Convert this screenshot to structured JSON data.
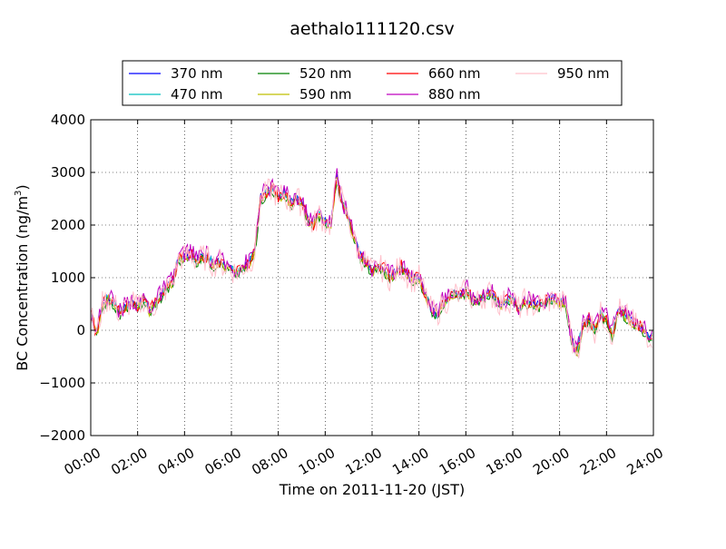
{
  "chart_data": {
    "type": "line",
    "title": "aethalo111120.csv",
    "xlabel": "Time on 2011-11-20 (JST)",
    "ylabel": "BC Concentration (ng/m",
    "ylabel_sup": "3",
    "ylabel_end": ")",
    "xlim": [
      "00:00",
      "24:00"
    ],
    "ylim": [
      -2000,
      4000
    ],
    "grid": true,
    "legend_position": "top",
    "x_ticks": [
      "00:00",
      "02:00",
      "04:00",
      "06:00",
      "08:00",
      "10:00",
      "12:00",
      "14:00",
      "16:00",
      "18:00",
      "20:00",
      "22:00",
      "24:00"
    ],
    "y_ticks": [
      "4000",
      "3000",
      "2000",
      "1000",
      "0",
      "−1000",
      "−2000"
    ],
    "x": [
      "00:00",
      "00:15",
      "00:30",
      "00:45",
      "01:00",
      "01:15",
      "01:30",
      "01:45",
      "02:00",
      "02:15",
      "02:30",
      "02:45",
      "03:00",
      "03:15",
      "03:30",
      "03:45",
      "04:00",
      "04:15",
      "04:30",
      "04:45",
      "05:00",
      "05:15",
      "05:30",
      "05:45",
      "06:00",
      "06:15",
      "06:30",
      "06:45",
      "07:00",
      "07:15",
      "07:30",
      "07:45",
      "08:00",
      "08:15",
      "08:30",
      "08:45",
      "09:00",
      "09:15",
      "09:30",
      "09:45",
      "10:00",
      "10:15",
      "10:30",
      "10:45",
      "11:00",
      "11:15",
      "11:30",
      "11:45",
      "12:00",
      "12:15",
      "12:30",
      "12:45",
      "13:00",
      "13:15",
      "13:30",
      "13:45",
      "14:00",
      "14:15",
      "14:30",
      "14:45",
      "15:00",
      "15:15",
      "15:30",
      "15:45",
      "16:00",
      "16:15",
      "16:30",
      "16:45",
      "17:00",
      "17:15",
      "17:30",
      "17:45",
      "18:00",
      "18:15",
      "18:30",
      "18:45",
      "19:00",
      "19:15",
      "19:30",
      "19:45",
      "20:00",
      "20:15",
      "20:30",
      "20:45",
      "21:00",
      "21:15",
      "21:30",
      "21:45",
      "22:00",
      "22:15",
      "22:30",
      "22:45",
      "23:00",
      "23:15",
      "23:30",
      "23:45"
    ],
    "base": [
      300,
      -100,
      500,
      600,
      500,
      300,
      450,
      550,
      400,
      600,
      350,
      500,
      650,
      800,
      900,
      1350,
      1400,
      1450,
      1300,
      1400,
      1350,
      1250,
      1300,
      1200,
      1150,
      1100,
      1200,
      1250,
      1500,
      2500,
      2600,
      2700,
      2500,
      2600,
      2400,
      2500,
      2400,
      2100,
      2000,
      2200,
      2050,
      2000,
      2900,
      2400,
      2100,
      1700,
      1400,
      1300,
      1100,
      1200,
      1150,
      1000,
      1100,
      1200,
      1050,
      950,
      1000,
      700,
      400,
      300,
      500,
      600,
      700,
      650,
      750,
      600,
      550,
      650,
      700,
      600,
      500,
      550,
      600,
      400,
      550,
      500,
      450,
      500,
      550,
      600,
      500,
      550,
      -200,
      -400,
      100,
      200,
      0,
      300,
      200,
      -100,
      400,
      300,
      200,
      100,
      50,
      -100
    ],
    "series": [
      {
        "name": "370 nm",
        "color": "#0000ff",
        "offset": 30,
        "noise": 70
      },
      {
        "name": "470 nm",
        "color": "#00bfbf",
        "offset": 10,
        "noise": 80
      },
      {
        "name": "520 nm",
        "color": "#008000",
        "offset": -40,
        "noise": 90
      },
      {
        "name": "590 nm",
        "color": "#bfbf00",
        "offset": -10,
        "noise": 90
      },
      {
        "name": "660 nm",
        "color": "#ff0000",
        "offset": 20,
        "noise": 120
      },
      {
        "name": "880 nm",
        "color": "#bf00bf",
        "offset": 60,
        "noise": 180
      },
      {
        "name": "950 nm",
        "color": "#ffc0cb",
        "offset": 0,
        "noise": 260
      }
    ]
  }
}
